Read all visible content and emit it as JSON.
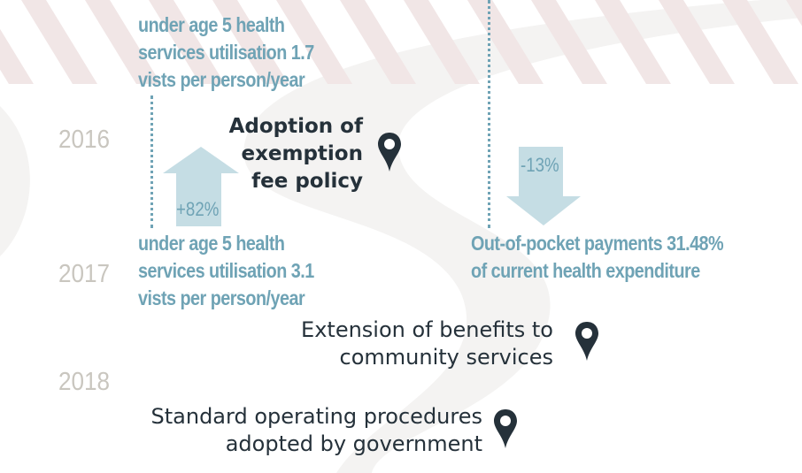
{
  "years": [
    "2016",
    "2017",
    "2018"
  ],
  "indicators": {
    "utilisation_before": [
      "under age 5 health",
      "services utilisation 1.7",
      "vists per person/year"
    ],
    "utilisation_after": [
      "under age 5 health",
      "services utilisation 3.1",
      "vists per person/year"
    ],
    "utilisation_change": "+82%",
    "oop_change": "-13%",
    "oop_after": [
      "Out-of-pocket payments 31.48%",
      "of current health expenditure"
    ]
  },
  "events": [
    {
      "lines": [
        "Adoption of",
        "exemption",
        "fee policy"
      ],
      "icon": "map-pin-icon"
    },
    {
      "lines": [
        "Extension of benefits to",
        "community services"
      ],
      "icon": "map-pin-icon"
    },
    {
      "lines": [
        "Standard operating procedures",
        "adopted by government"
      ],
      "icon": "map-pin-icon"
    }
  ],
  "colors": {
    "teal": "#6fa3b5",
    "arrow": "#c5dde4",
    "dark": "#25313a",
    "year": "#c9c6bf",
    "stripe": "#f1e6e6",
    "swirl": "#f4f3f2"
  }
}
